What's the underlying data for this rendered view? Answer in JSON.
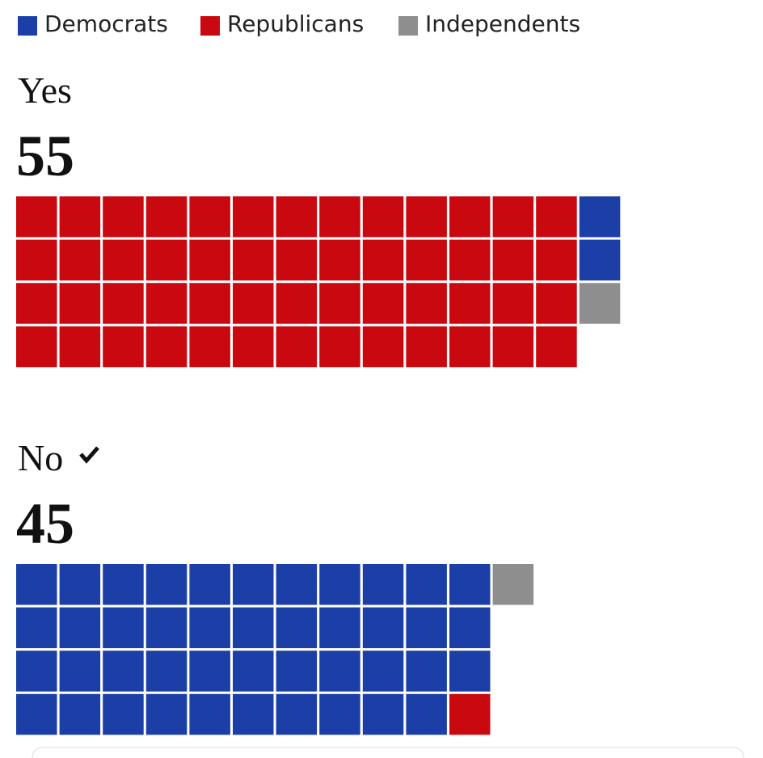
{
  "chart_data": {
    "type": "waffle",
    "categories": [
      "Yes",
      "No"
    ],
    "totals": [
      55,
      45
    ],
    "series": [
      {
        "name": "Democrats",
        "color": "#1b3fa6",
        "values": [
          2,
          43
        ]
      },
      {
        "name": "Republicans",
        "color": "#c9080f",
        "values": [
          52,
          1
        ]
      },
      {
        "name": "Independents",
        "color": "#8e8e8e",
        "values": [
          1,
          1
        ]
      }
    ],
    "rows": 4
  }
}
